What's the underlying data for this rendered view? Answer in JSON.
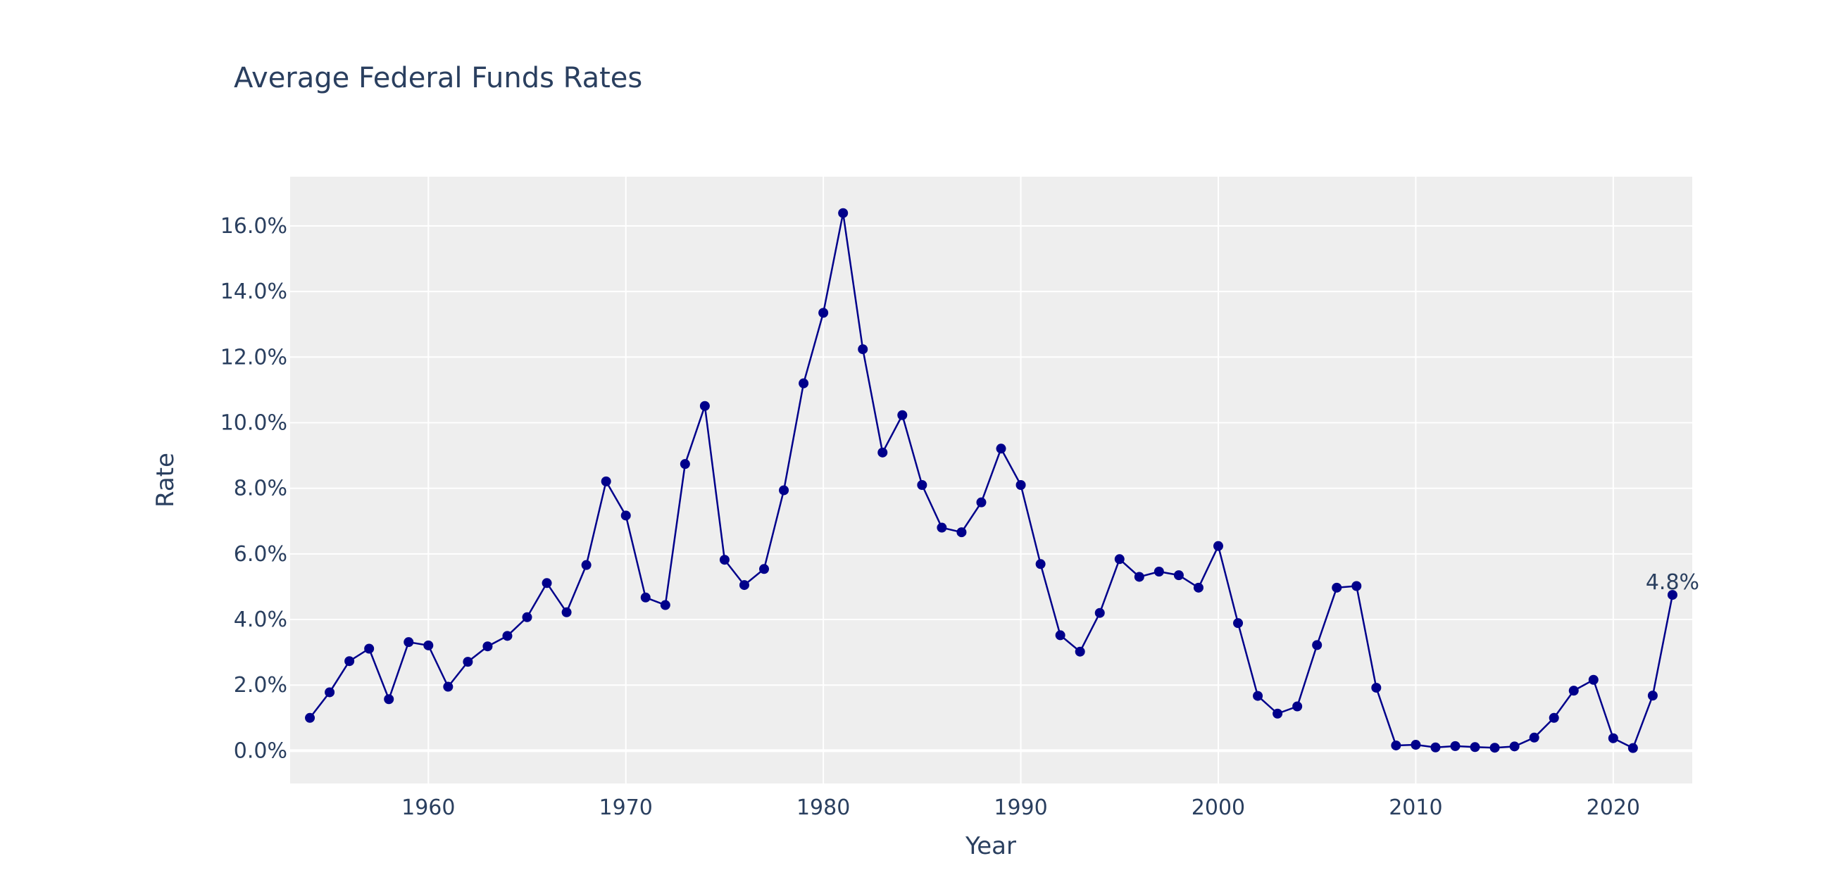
{
  "chart_data": {
    "type": "line",
    "title": "Average Federal Funds Rates",
    "xlabel": "Year",
    "ylabel": "Rate",
    "xlim": [
      1953,
      2024
    ],
    "ylim": [
      -1,
      17.5
    ],
    "x_ticks": [
      1960,
      1970,
      1980,
      1990,
      2000,
      2010,
      2020
    ],
    "y_ticks": [
      0,
      2,
      4,
      6,
      8,
      10,
      12,
      14,
      16
    ],
    "y_tick_labels": [
      "0.0%",
      "2.0%",
      "4.0%",
      "6.0%",
      "8.0%",
      "10.0%",
      "12.0%",
      "14.0%",
      "16.0%"
    ],
    "grid": true,
    "line_color": "#00008b",
    "plot_bg": "#eeeeee",
    "series": [
      {
        "x": [
          1954,
          1955,
          1956,
          1957,
          1958,
          1959,
          1960,
          1961,
          1962,
          1963,
          1964,
          1965,
          1966,
          1967,
          1968,
          1969,
          1970,
          1971,
          1972,
          1973,
          1974,
          1975,
          1976,
          1977,
          1978,
          1979,
          1980,
          1981,
          1982,
          1983,
          1984,
          1985,
          1986,
          1987,
          1988,
          1989,
          1990,
          1991,
          1992,
          1993,
          1994,
          1995,
          1996,
          1997,
          1998,
          1999,
          2000,
          2001,
          2002,
          2003,
          2004,
          2005,
          2006,
          2007,
          2008,
          2009,
          2010,
          2011,
          2012,
          2013,
          2014,
          2015,
          2016,
          2017,
          2018,
          2019,
          2020,
          2021,
          2022,
          2023
        ],
        "y": [
          1.0,
          1.78,
          2.73,
          3.11,
          1.57,
          3.31,
          3.21,
          1.95,
          2.71,
          3.18,
          3.5,
          4.07,
          5.11,
          4.22,
          5.66,
          8.21,
          7.17,
          4.67,
          4.44,
          8.74,
          10.51,
          5.82,
          5.05,
          5.54,
          7.94,
          11.2,
          13.35,
          16.39,
          12.24,
          9.09,
          10.23,
          8.1,
          6.8,
          6.66,
          7.57,
          9.21,
          8.1,
          5.69,
          3.52,
          3.02,
          4.2,
          5.84,
          5.3,
          5.46,
          5.35,
          4.97,
          6.24,
          3.89,
          1.67,
          1.13,
          1.35,
          3.22,
          4.97,
          5.02,
          1.92,
          0.16,
          0.18,
          0.1,
          0.14,
          0.11,
          0.09,
          0.13,
          0.4,
          1.0,
          1.83,
          2.16,
          0.38,
          0.08,
          1.68,
          4.75
        ]
      }
    ],
    "annotations": [
      {
        "x": 2023,
        "y": 4.75,
        "text": "4.8%"
      }
    ]
  }
}
